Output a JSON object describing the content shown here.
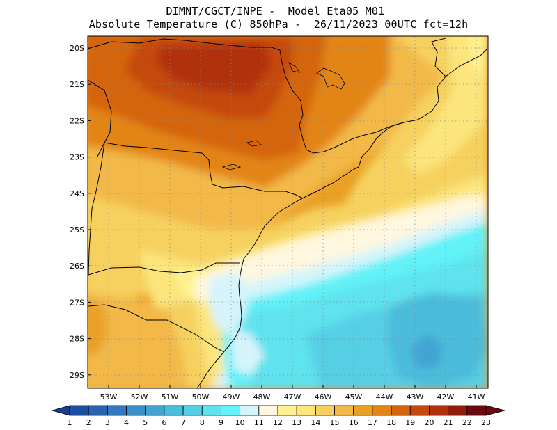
{
  "header": {
    "line1": "DIMNT/CGCT/INPE -  Model Eta05_M01_",
    "line2": "Absolute Temperature (C) 850hPa -  26/11/2023 00UTC fct=12h"
  },
  "map": {
    "lat_labels": [
      "20S",
      "21S",
      "22S",
      "23S",
      "24S",
      "25S",
      "26S",
      "27S",
      "28S",
      "29S"
    ],
    "lon_labels": [
      "53W",
      "52W",
      "51W",
      "50W",
      "49W",
      "48W",
      "47W",
      "46W",
      "45W",
      "44W",
      "43W",
      "42W",
      "41W"
    ],
    "lat_range": [
      -29.5,
      -19.8
    ],
    "lon_range": [
      -53.7,
      -40.6
    ]
  },
  "colorbar": {
    "labels": [
      "1",
      "2",
      "3",
      "4",
      "5",
      "6",
      "7",
      "8",
      "9",
      "10",
      "11",
      "12",
      "13",
      "14",
      "15",
      "16",
      "17",
      "18",
      "19",
      "20",
      "21",
      "22",
      "23"
    ],
    "colors": [
      "#1a3d8f",
      "#1f4e9e",
      "#2a62ae",
      "#3378bd",
      "#3b8fc7",
      "#43a4d1",
      "#4cbcdc",
      "#56cfe5",
      "#5ee3ee",
      "#62f2f8",
      "#d6f4fb",
      "#fff7df",
      "#fff18f",
      "#fce57b",
      "#f6d161",
      "#f2b94a",
      "#eaa025",
      "#e38516",
      "#d4650f",
      "#c44a0c",
      "#b0330d",
      "#8f1e0e",
      "#6a0a10"
    ]
  }
}
